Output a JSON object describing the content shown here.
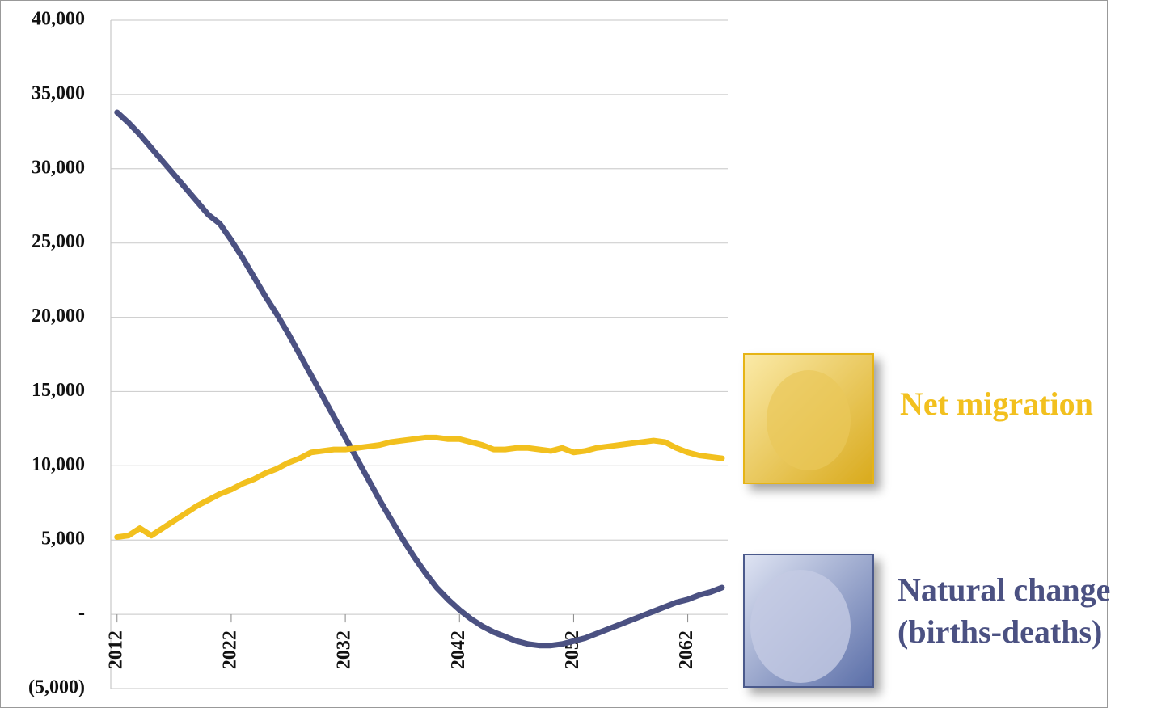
{
  "chart_data": {
    "type": "line",
    "x": [
      2012,
      2013,
      2014,
      2015,
      2016,
      2017,
      2018,
      2019,
      2020,
      2021,
      2022,
      2023,
      2024,
      2025,
      2026,
      2027,
      2028,
      2029,
      2030,
      2031,
      2032,
      2033,
      2034,
      2035,
      2036,
      2037,
      2038,
      2039,
      2040,
      2041,
      2042,
      2043,
      2044,
      2045,
      2046,
      2047,
      2048,
      2049,
      2050,
      2051,
      2052,
      2053,
      2054,
      2055,
      2056,
      2057,
      2058,
      2059,
      2060,
      2061,
      2062,
      2063,
      2064,
      2065
    ],
    "series": [
      {
        "name": "Natural change (births-deaths)",
        "color": "#4b5182",
        "values": [
          33800,
          33100,
          32300,
          31400,
          30500,
          29600,
          28700,
          27800,
          26900,
          26300,
          25200,
          24000,
          22700,
          21400,
          20200,
          18900,
          17500,
          16100,
          14700,
          13300,
          11900,
          10500,
          9100,
          7700,
          6400,
          5100,
          3900,
          2800,
          1800,
          1000,
          300,
          -300,
          -800,
          -1200,
          -1500,
          -1800,
          -2000,
          -2100,
          -2100,
          -2000,
          -1800,
          -1600,
          -1300,
          -1000,
          -700,
          -400,
          -100,
          200,
          500,
          800,
          1000,
          1300,
          1500,
          1800
        ]
      },
      {
        "name": "Net migration",
        "color": "#f2c01e",
        "values": [
          5200,
          5300,
          5800,
          5300,
          5800,
          6300,
          6800,
          7300,
          7700,
          8100,
          8400,
          8800,
          9100,
          9500,
          9800,
          10200,
          10500,
          10900,
          11000,
          11100,
          11100,
          11200,
          11300,
          11400,
          11600,
          11700,
          11800,
          11900,
          11900,
          11800,
          11800,
          11600,
          11400,
          11100,
          11100,
          11200,
          11200,
          11100,
          11000,
          11200,
          10900,
          11000,
          11200,
          11300,
          11400,
          11500,
          11600,
          11700,
          11600,
          11200,
          10900,
          10700,
          10600,
          10500
        ]
      }
    ],
    "xlim": [
      2011.45,
      2065.5
    ],
    "xticks": [
      2012,
      2022,
      2032,
      2042,
      2052,
      2062
    ],
    "ylim": [
      -5000,
      40000
    ],
    "yticks": [
      {
        "value": -5000,
        "label": "(5,000)"
      },
      {
        "value": 0,
        "label": "-"
      },
      {
        "value": 5000,
        "label": "5,000"
      },
      {
        "value": 10000,
        "label": "10,000"
      },
      {
        "value": 15000,
        "label": "15,000"
      },
      {
        "value": 20000,
        "label": "20,000"
      },
      {
        "value": 25000,
        "label": "25,000"
      },
      {
        "value": 30000,
        "label": "30,000"
      },
      {
        "value": 35000,
        "label": "35,000"
      },
      {
        "value": 40000,
        "label": "40,000"
      }
    ],
    "grid": true
  }
}
